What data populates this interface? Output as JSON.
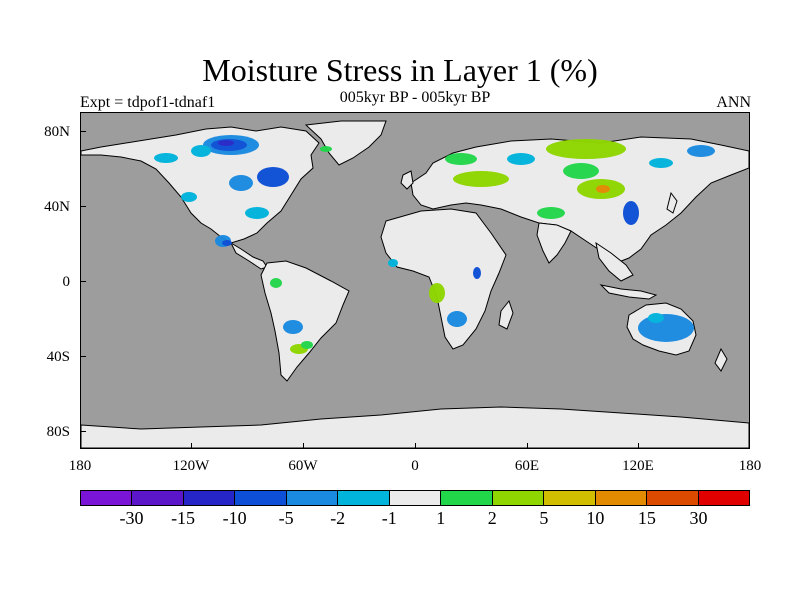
{
  "title": "Moisture Stress in Layer 1 (%)",
  "subtitle": "005kyr BP - 005kyr BP",
  "experiment": "Expt = tdpof1-tdnaf1",
  "season": "ANN",
  "latitude_labels": [
    "80N",
    "40N",
    "0",
    "40S",
    "80S"
  ],
  "longitude_labels": [
    "180",
    "120W",
    "60W",
    "0",
    "60E",
    "120E",
    "180"
  ],
  "colorbar": {
    "colors": [
      "#7a14d6",
      "#5a16c8",
      "#2626c8",
      "#0d4fd6",
      "#1a8ae0",
      "#00b4dc",
      "#ebebeb",
      "#22d64a",
      "#8fd600",
      "#d2be00",
      "#e28a00",
      "#dc4a00",
      "#e00000"
    ],
    "labels": [
      "-30",
      "-15",
      "-10",
      "-5",
      "-2",
      "-1",
      "1",
      "2",
      "5",
      "10",
      "15",
      "30"
    ]
  },
  "colors": {
    "ocean": "#9d9d9d",
    "land_neutral": "#ebebeb",
    "coastline": "#000000"
  }
}
